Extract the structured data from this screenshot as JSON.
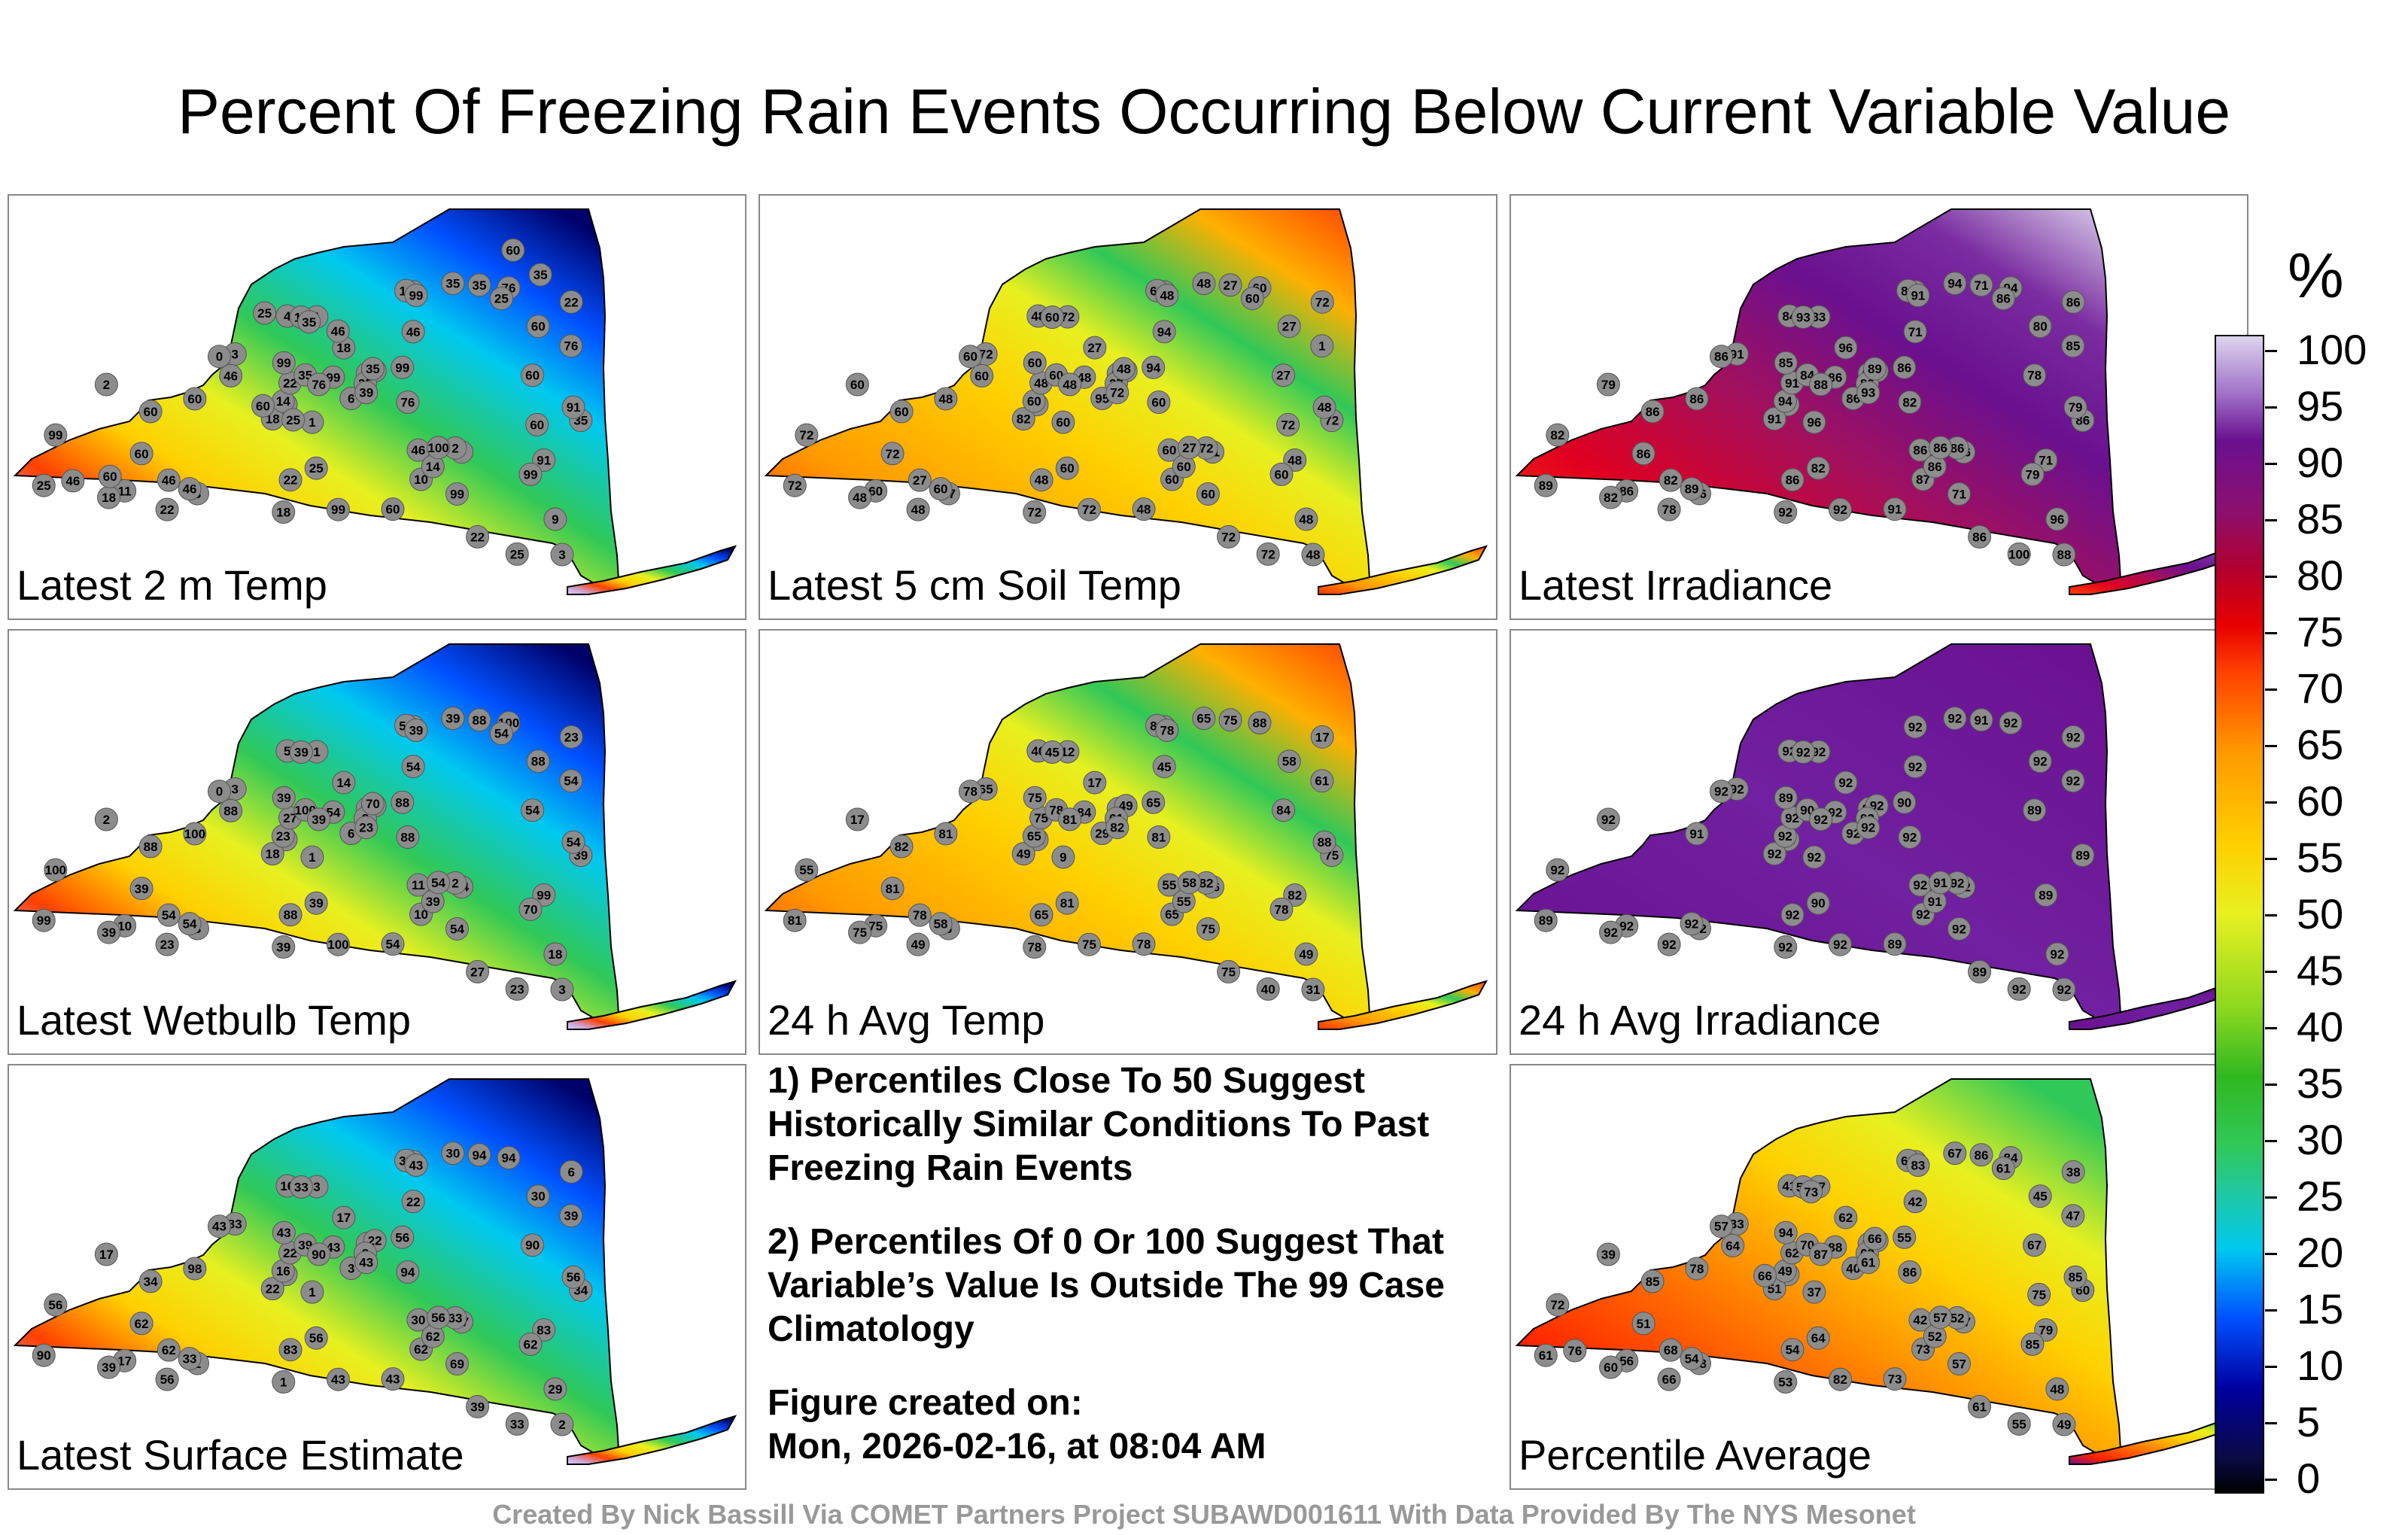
{
  "title": "Percent Of Freezing Rain Events Occurring Below Current Variable Value",
  "panels": [
    {
      "label": "Latest 2 m Temp",
      "palette": "cold",
      "stations": [
        "1",
        "2",
        "10",
        "8",
        "1",
        "3",
        "6",
        "3",
        "2",
        "22",
        "18",
        "46",
        "4",
        "18",
        "11",
        "3",
        "14",
        "14",
        "8",
        "46",
        "76",
        "14",
        "18",
        "22",
        "35",
        "46",
        "25",
        "9",
        "2",
        "0",
        "10",
        "35",
        "39",
        "18",
        "60",
        "14",
        "22",
        "99",
        "76",
        "60",
        "35",
        "35",
        "25",
        "22",
        "100",
        "99",
        "99",
        "99",
        "76",
        "91",
        "60",
        "25",
        "22",
        "60",
        "35",
        "99",
        "99",
        "76",
        "99",
        "11",
        "99",
        "60",
        "91",
        "60",
        "46",
        "35",
        "25",
        "46",
        "60",
        "35",
        "60",
        "46",
        "25",
        "35",
        "25",
        "60",
        "60",
        "46"
      ]
    },
    {
      "label": "Latest 5 cm Soil Temp",
      "palette": "warm",
      "stations": [
        "60",
        "60",
        "60",
        "27",
        "72",
        "72",
        "95",
        "48",
        "60",
        "72",
        "82",
        "94",
        "48",
        "27",
        "60",
        "72",
        "60",
        "72",
        "91",
        "60",
        "1",
        "60",
        "72",
        "48",
        "48",
        "60",
        "72",
        "48",
        "72",
        "60",
        "60",
        "27",
        "72",
        "48",
        "27",
        "60",
        "48",
        "72",
        "60",
        "48",
        "27",
        "60",
        "72",
        "48",
        "27",
        "72",
        "60",
        "48",
        "60",
        "48",
        "27",
        "60",
        "72",
        "48",
        "72",
        "94",
        "60",
        "48",
        "60",
        "60",
        "48",
        "60",
        "48",
        "72",
        "27",
        "48",
        "60",
        "60",
        "72"
      ]
    },
    {
      "label": "Latest Irradiance",
      "palette": "hot",
      "stations": [
        "96",
        "89",
        "97",
        "86",
        "83",
        "100",
        "86",
        "88",
        "79",
        "86",
        "91",
        "71",
        "84",
        "96",
        "86",
        "91",
        "93",
        "88",
        "86",
        "86",
        "85",
        "94",
        "92",
        "91",
        "94",
        "89",
        "100",
        "96",
        "86",
        "86",
        "87",
        "86",
        "93",
        "82",
        "80",
        "86",
        "78",
        "92",
        "94",
        "86",
        "71",
        "84",
        "89",
        "86",
        "86",
        "82",
        "85",
        "86",
        "82",
        "71",
        "78",
        "82",
        "86",
        "91",
        "86",
        "86",
        "71",
        "88",
        "79",
        "86",
        "91",
        "86",
        "79",
        "86",
        "82",
        "89",
        "86"
      ]
    },
    {
      "label": "Latest Wetbulb Temp",
      "palette": "cold",
      "stations": [
        "1",
        "2",
        "10",
        "8",
        "1",
        "3",
        "6",
        "3",
        "2",
        "23",
        "18",
        "54",
        "5",
        "14",
        "10",
        "3",
        "39",
        "8",
        "54",
        "11",
        "54",
        "23",
        "39",
        "27",
        "39",
        "54",
        "23",
        "18",
        "2",
        "0",
        "10",
        "8",
        "23",
        "39",
        "88",
        "39",
        "23",
        "100",
        "100",
        "100",
        "88",
        "100",
        "99",
        "88",
        "54",
        "100",
        "39",
        "54",
        "88",
        "99",
        "54",
        "39",
        "27",
        "54",
        "39",
        "88",
        "54",
        "39",
        "70",
        "54",
        "39",
        "88",
        "54",
        "39",
        "54",
        "70",
        "54",
        "88"
      ]
    },
    {
      "label": "24 h Avg Temp",
      "palette": "warm",
      "stations": [
        "9",
        "12",
        "7",
        "5",
        "12",
        "29",
        "29",
        "31",
        "17",
        "17",
        "49",
        "45",
        "40",
        "17",
        "75",
        "65",
        "45",
        "49",
        "36",
        "55",
        "61",
        "65",
        "78",
        "75",
        "65",
        "58",
        "40",
        "49",
        "82",
        "78",
        "65",
        "61",
        "82",
        "75",
        "58",
        "55",
        "49",
        "75",
        "88",
        "81",
        "75",
        "78",
        "81",
        "65",
        "58",
        "55",
        "75",
        "84",
        "81",
        "82",
        "84",
        "81",
        "75",
        "78",
        "75",
        "65",
        "75",
        "81",
        "78",
        "81",
        "78",
        "82",
        "88",
        "81",
        "78"
      ]
    },
    {
      "label": "24 h Avg Irradiance",
      "palette": "purple",
      "stations": [
        "92",
        "92",
        "92",
        "92",
        "92",
        "92",
        "92",
        "92",
        "92",
        "92",
        "92",
        "92",
        "92",
        "92",
        "92",
        "92",
        "92",
        "92",
        "92",
        "92",
        "92",
        "92",
        "92",
        "92",
        "92",
        "92",
        "92",
        "92",
        "92",
        "92",
        "92",
        "92",
        "92",
        "92",
        "92",
        "91",
        "92",
        "92",
        "92",
        "91",
        "91",
        "90",
        "89",
        "92",
        "91",
        "92",
        "89",
        "92",
        "92",
        "89",
        "89",
        "90",
        "89",
        "89",
        "89",
        "90",
        "92",
        "92"
      ]
    },
    {
      "label": "Latest Surface Estimate",
      "palette": "cold",
      "stations": [
        "1",
        "2",
        "6",
        "1",
        "3",
        "6",
        "3",
        "2",
        "17",
        "6",
        "22",
        "22",
        "16",
        "17",
        "17",
        "33",
        "33",
        "22",
        "27",
        "30",
        "39",
        "16",
        "1",
        "22",
        "30",
        "33",
        "33",
        "29",
        "33",
        "43",
        "62",
        "8",
        "43",
        "39",
        "30",
        "62",
        "56",
        "43",
        "94",
        "98",
        "94",
        "39",
        "90",
        "83",
        "56",
        "56",
        "43",
        "43",
        "94",
        "83",
        "90",
        "56",
        "39",
        "43",
        "34",
        "56",
        "69",
        "90",
        "62",
        "39",
        "43",
        "34",
        "56",
        "62",
        "62"
      ]
    },
    {
      "label": "Percentile Average",
      "palette": "avg",
      "stations": [
        "37",
        "40",
        "33",
        "38",
        "37",
        "53",
        "40",
        "49",
        "39",
        "38",
        "51",
        "42",
        "41",
        "62",
        "56",
        "33",
        "52",
        "39",
        "47",
        "42",
        "47",
        "49",
        "53",
        "62",
        "67",
        "54",
        "55",
        "48",
        "52",
        "57",
        "73",
        "69",
        "61",
        "60",
        "45",
        "52",
        "66",
        "82",
        "84",
        "78",
        "86",
        "70",
        "61",
        "54",
        "57",
        "72",
        "94",
        "88",
        "86",
        "79",
        "67",
        "64",
        "61",
        "73",
        "60",
        "55",
        "57",
        "87",
        "85",
        "69",
        "83",
        "85",
        "85",
        "51",
        "68",
        "66",
        "61",
        "64",
        "75",
        "73",
        "66",
        "76"
      ]
    }
  ],
  "notes": [
    "1) Percentiles Close To 50 Suggest Historically Similar Conditions To Past Freezing Rain Events",
    "2) Percentiles Of 0 Or 100 Suggest That Variable’s Value Is Outside The 99 Case Climatology"
  ],
  "created_label": "Figure created on:",
  "created_value": "Mon, 2026-02-16, at 08:04 AM",
  "colorbar": {
    "unit": "%",
    "ticks": [
      "100",
      "95",
      "90",
      "85",
      "80",
      "75",
      "70",
      "65",
      "60",
      "55",
      "50",
      "45",
      "40",
      "35",
      "30",
      "25",
      "20",
      "15",
      "10",
      "5",
      "0"
    ]
  },
  "credit": "Created By Nick Bassill Via COMET Partners Project SUBAWD001611 With Data Provided By The NYS Mesonet"
}
